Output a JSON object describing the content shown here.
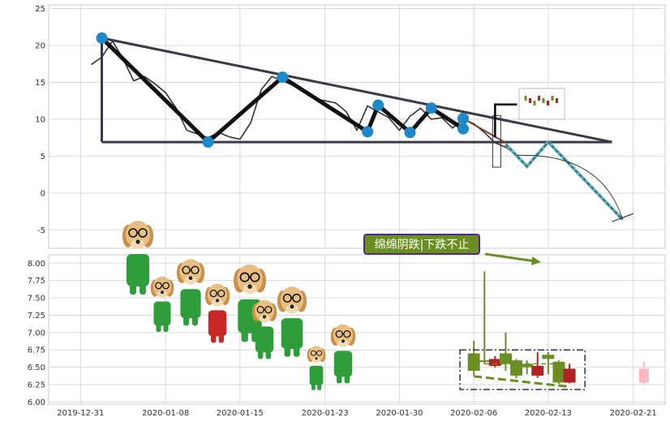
{
  "chart_data": [
    {
      "type": "line",
      "panel": "top",
      "ylim": [
        -7.5,
        25.5
      ],
      "yticks": [
        -5,
        0,
        5,
        10,
        15,
        20,
        25
      ],
      "grid": true,
      "series": [
        {
          "values_xy": [
            [
              "2020-01-01",
              17.4
            ],
            [
              "2020-01-02",
              18.4
            ],
            [
              "2020-01-03",
              20.6
            ],
            [
              "2020-01-04",
              18.2
            ],
            [
              "2020-01-05",
              15.2
            ],
            [
              "2020-01-06",
              15.8
            ],
            [
              "2020-01-07",
              14.8
            ],
            [
              "2020-01-08",
              13.6
            ],
            [
              "2020-01-09",
              11.5
            ],
            [
              "2020-01-10",
              8.5
            ],
            [
              "2020-01-11",
              8.0
            ],
            [
              "2020-01-12",
              7.5
            ],
            [
              "2020-01-13",
              8.2
            ],
            [
              "2020-01-14",
              7.6
            ],
            [
              "2020-01-15",
              7.3
            ],
            [
              "2020-01-16",
              9.5
            ],
            [
              "2020-01-17",
              14.0
            ],
            [
              "2020-01-18",
              15.8
            ],
            [
              "2020-01-19",
              15.2
            ],
            [
              "2020-01-20",
              14.6
            ],
            [
              "2020-01-21",
              13.8
            ],
            [
              "2020-01-22",
              12.8
            ],
            [
              "2020-01-23",
              12.5
            ],
            [
              "2020-01-24",
              12.2
            ],
            [
              "2020-01-25",
              11.0
            ],
            [
              "2020-01-26",
              8.5
            ],
            [
              "2020-01-27",
              11.8
            ],
            [
              "2020-01-28",
              11.0
            ],
            [
              "2020-01-29",
              10.2
            ],
            [
              "2020-01-30",
              8.5
            ],
            [
              "2020-01-31",
              10.4
            ],
            [
              "2020-02-01",
              11.5
            ],
            [
              "2020-02-02",
              10.0
            ],
            [
              "2020-02-03",
              10.2
            ],
            [
              "2020-02-04",
              8.8
            ],
            [
              "2020-02-05",
              10.0
            ],
            [
              "2020-02-06",
              9.4
            ],
            [
              "2020-02-07",
              8.2
            ],
            [
              "2020-02-08",
              6.8
            ],
            [
              "2020-02-09",
              6.2
            ],
            [
              "2020-02-10",
              5.2
            ]
          ]
        }
      ],
      "pattern_points": [
        [
          "2020-01-02",
          21.0
        ],
        [
          "2020-01-12",
          6.9
        ],
        [
          "2020-01-19",
          15.7
        ],
        [
          "2020-01-27",
          8.3
        ],
        [
          "2020-01-28",
          11.9
        ],
        [
          "2020-01-31",
          8.2
        ],
        [
          "2020-02-02",
          11.5
        ],
        [
          "2020-02-05",
          8.7
        ],
        [
          "2020-02-05",
          10.1
        ]
      ],
      "projection": [
        [
          "2020-02-09",
          6.6
        ],
        [
          "2020-02-11",
          3.6
        ],
        [
          "2020-02-13",
          6.9
        ],
        [
          "2020-02-20",
          -3.6
        ]
      ]
    },
    {
      "type": "candlestick",
      "panel": "bottom",
      "ylim": [
        5.97,
        8.12
      ],
      "yticks": [
        6.0,
        6.25,
        6.5,
        6.75,
        7.0,
        7.25,
        7.5,
        7.75,
        8.0
      ],
      "xticks": [
        "2019-12-31",
        "2020-01-08",
        "2020-01-15",
        "2020-01-23",
        "2020-01-30",
        "2020-02-06",
        "2020-02-13",
        "2020-02-21"
      ],
      "grid": true,
      "candles": [
        {
          "date": "2020-02-06",
          "open": 6.45,
          "close": 6.7,
          "high": 6.88,
          "low": 6.38
        },
        {
          "date": "2020-02-07",
          "open": 6.58,
          "close": 6.6,
          "high": 7.88,
          "low": 6.55
        },
        {
          "date": "2020-02-08",
          "open": 6.62,
          "close": 6.52,
          "high": 6.66,
          "low": 6.5
        },
        {
          "date": "2020-02-09",
          "open": 6.55,
          "close": 6.7,
          "high": 7.0,
          "low": 6.45
        },
        {
          "date": "2020-02-10",
          "open": 6.38,
          "close": 6.6,
          "high": 6.62,
          "low": 6.34
        },
        {
          "date": "2020-02-11",
          "open": 6.5,
          "close": 6.55,
          "high": 6.6,
          "low": 6.4
        },
        {
          "date": "2020-02-12",
          "open": 6.52,
          "close": 6.38,
          "high": 6.72,
          "low": 6.35
        },
        {
          "date": "2020-02-13",
          "open": 6.62,
          "close": 6.68,
          "high": 6.72,
          "low": 6.4
        },
        {
          "date": "2020-02-14",
          "open": 6.28,
          "close": 6.58,
          "high": 6.6,
          "low": 6.26
        },
        {
          "date": "2020-02-15",
          "open": 6.48,
          "close": 6.28,
          "high": 6.55,
          "low": 6.27
        }
      ]
    }
  ],
  "annotation_text": "绵绵阴跌|下跌不止",
  "colors": {
    "up": "#6b8e23",
    "down": "#b22222",
    "future": "#ffb6c1",
    "pattern": "#333333",
    "marker": "#1e88c8",
    "grid": "#d9d9d9",
    "ann_bg": "#6b8e23",
    "ann_border": "#4b2e83"
  },
  "icons": [
    "puppy-sticker-icon",
    "mini-candles-icon"
  ]
}
